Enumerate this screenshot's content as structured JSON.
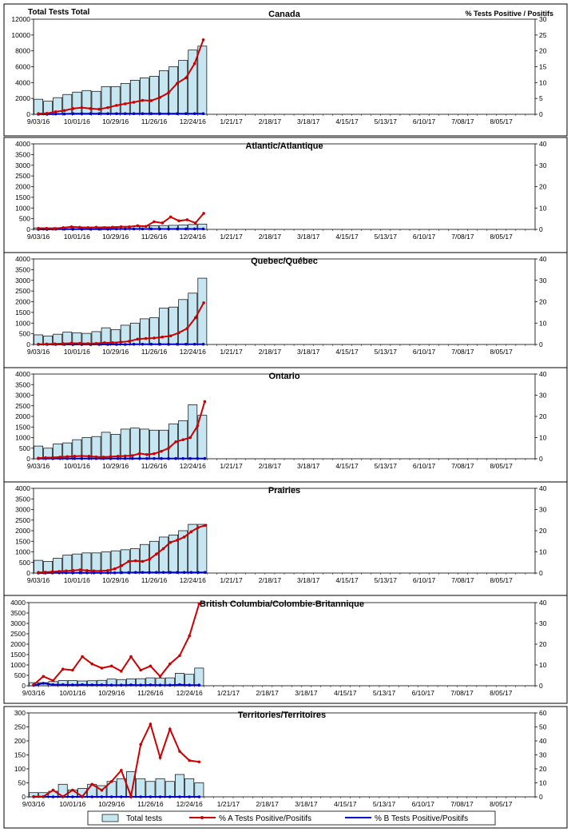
{
  "header": {
    "left_axis_title": "Total Tests Total",
    "right_axis_title": "% Tests Positive / Positifs"
  },
  "colors": {
    "bar_fill": "#c6e6f2",
    "bar_stroke": "#000000",
    "line_a": "#cc0000",
    "line_b": "#0000cc"
  },
  "x_tick_labels": [
    "9/03/16",
    "10/01/16",
    "10/29/16",
    "11/26/16",
    "12/24/16",
    "1/21/17",
    "2/18/17",
    "3/18/17",
    "4/15/17",
    "5/13/17",
    "6/10/17",
    "7/08/17",
    "8/05/17"
  ],
  "legend": {
    "total_tests": "Total tests",
    "pct_a": "% A Tests Positive/Positifs",
    "pct_b": "% B Tests Positive/Positifs"
  },
  "chart_data": [
    {
      "type": "bar",
      "title": "Canada",
      "weeks": 52,
      "ylim": [
        0,
        12000
      ],
      "yticks": [
        0,
        2000,
        4000,
        6000,
        8000,
        10000,
        12000
      ],
      "y2lim": [
        0,
        30
      ],
      "y2ticks": [
        0,
        5,
        10,
        15,
        20,
        25,
        30
      ],
      "total_tests": [
        1900,
        1650,
        2100,
        2500,
        2800,
        3000,
        2900,
        3500,
        3500,
        3900,
        4300,
        4600,
        4800,
        5500,
        6000,
        6800,
        8100,
        8600
      ],
      "pct_a": [
        0.2,
        0.3,
        0.8,
        1.2,
        1.8,
        2.1,
        1.8,
        1.6,
        2.1,
        2.8,
        3.3,
        3.8,
        4.4,
        4.3,
        5.3,
        6.8,
        9.8,
        11.5,
        16.0,
        23.5
      ],
      "pct_b": [
        0,
        0,
        0.1,
        0.1,
        0.2,
        0.2,
        0.2,
        0.2,
        0.2,
        0.2,
        0.2,
        0.2,
        0.2,
        0.2,
        0.2,
        0.2,
        0.2,
        0.2,
        0.2,
        0.2
      ]
    },
    {
      "type": "bar",
      "title": "Atlantic/Atlantique",
      "weeks": 52,
      "ylim": [
        0,
        4000
      ],
      "yticks": [
        0,
        500,
        1000,
        1500,
        2000,
        2500,
        3000,
        3500,
        4000
      ],
      "y2lim": [
        0,
        40
      ],
      "y2ticks": [
        0,
        10,
        20,
        30,
        40
      ],
      "total_tests": [
        70,
        70,
        80,
        90,
        100,
        110,
        110,
        120,
        130,
        140,
        150,
        160,
        170,
        180,
        190,
        200,
        230,
        250
      ],
      "pct_a": [
        0.5,
        0.5,
        0.4,
        0.8,
        1.2,
        1.0,
        0.8,
        1.0,
        0.8,
        1.0,
        1.2,
        1.2,
        1.7,
        1.4,
        3.6,
        3.0,
        5.8,
        4.0,
        4.5,
        3.0,
        7.5
      ],
      "pct_b": [
        0,
        0,
        0.1,
        0.1,
        0.1,
        0.1,
        0.1,
        0.1,
        0.1,
        0.2,
        0.2,
        0.2,
        0.2,
        0.2,
        0.2,
        0.2,
        0.2,
        0.2,
        0.2,
        0.2
      ]
    },
    {
      "type": "bar",
      "title": "Quebec/Québec",
      "weeks": 52,
      "ylim": [
        0,
        4000
      ],
      "yticks": [
        0,
        500,
        1000,
        1500,
        2000,
        2500,
        3000,
        3500,
        4000
      ],
      "y2lim": [
        0,
        40
      ],
      "y2ticks": [
        0,
        10,
        20,
        30,
        40
      ],
      "total_tests": [
        450,
        400,
        480,
        580,
        550,
        520,
        600,
        780,
        700,
        900,
        1000,
        1200,
        1250,
        1700,
        1750,
        2100,
        2400,
        3100
      ],
      "pct_a": [
        0.1,
        0.2,
        0.3,
        0.4,
        0.6,
        0.5,
        0.4,
        0.5,
        0.8,
        0.8,
        1.1,
        1.5,
        2.5,
        2.8,
        3.0,
        3.5,
        4.0,
        5.5,
        7.5,
        12.5,
        19.5
      ],
      "pct_b": [
        0,
        0,
        0,
        0,
        0,
        0,
        0,
        0,
        0,
        0,
        0,
        0.1,
        0.1,
        0.1,
        0.1,
        0.1,
        0.1,
        0.1,
        0.1,
        0.1
      ]
    },
    {
      "type": "bar",
      "title": "Ontario",
      "weeks": 52,
      "ylim": [
        0,
        4000
      ],
      "yticks": [
        0,
        500,
        1000,
        1500,
        2000,
        2500,
        3000,
        3500,
        4000
      ],
      "y2lim": [
        0,
        40
      ],
      "y2ticks": [
        0,
        10,
        20,
        30,
        40
      ],
      "total_tests": [
        600,
        500,
        700,
        750,
        900,
        1000,
        1050,
        1250,
        1150,
        1400,
        1450,
        1400,
        1350,
        1350,
        1650,
        1800,
        2550,
        2050
      ],
      "pct_a": [
        0.3,
        0.5,
        0.6,
        0.8,
        1.0,
        1.2,
        1.3,
        1.2,
        0.9,
        0.8,
        1.0,
        1.2,
        1.3,
        1.5,
        2.5,
        2.0,
        2.4,
        3.5,
        5.0,
        8.0,
        9.0,
        10.0,
        15.5,
        27.0
      ],
      "pct_b": [
        0.1,
        0.1,
        0.1,
        0.1,
        0.1,
        0.1,
        0.1,
        0.1,
        0.1,
        0.1,
        0.1,
        0.1,
        0.1,
        0.1,
        0.1,
        0.1,
        0.1,
        0.1,
        0.1,
        0.1,
        0.1,
        0.1,
        0.1,
        0.1
      ]
    },
    {
      "type": "bar",
      "title": "Prairies",
      "weeks": 52,
      "ylim": [
        0,
        4000
      ],
      "yticks": [
        0,
        500,
        1000,
        1500,
        2000,
        2500,
        3000,
        3500,
        4000
      ],
      "y2lim": [
        0,
        40
      ],
      "y2ticks": [
        0,
        10,
        20,
        30,
        40
      ],
      "total_tests": [
        600,
        550,
        700,
        850,
        900,
        950,
        950,
        1000,
        1050,
        1100,
        1150,
        1350,
        1500,
        1700,
        1800,
        2000,
        2300,
        2300
      ],
      "pct_a": [
        0.3,
        0.4,
        0.6,
        0.8,
        1.0,
        1.2,
        1.5,
        1.2,
        1.0,
        1.0,
        1.2,
        2.0,
        3.5,
        5.5,
        5.8,
        5.5,
        6.5,
        9.0,
        11.5,
        14.5,
        15.5,
        17.0,
        19.5,
        21.5,
        22.5
      ],
      "pct_b": [
        0,
        0,
        0.1,
        0.1,
        0.1,
        0.1,
        0.1,
        0.1,
        0.1,
        0.1,
        0.1,
        0.1,
        0.2,
        0.2,
        0.3,
        0.3,
        0.3,
        0.3,
        0.3,
        0.3,
        0.3,
        0.3,
        0.3,
        0.3,
        0.3
      ]
    },
    {
      "type": "bar",
      "title": "British Columbia/Colombie-Britannique",
      "weeks": 52,
      "ylim": [
        0,
        4000
      ],
      "yticks": [
        0,
        500,
        1000,
        1500,
        2000,
        2500,
        3000,
        3500,
        4000
      ],
      "y2lim": [
        0,
        40
      ],
      "y2ticks": [
        0,
        10,
        20,
        30,
        40
      ],
      "total_tests": [
        150,
        150,
        200,
        250,
        250,
        230,
        240,
        260,
        320,
        300,
        330,
        340,
        380,
        360,
        380,
        600,
        550,
        850
      ],
      "pct_a": [
        0.5,
        4.5,
        2.5,
        8.0,
        7.5,
        14.0,
        10.5,
        8.5,
        9.5,
        7.0,
        14.0,
        7.5,
        9.5,
        4.5,
        10.5,
        14.5,
        24.0,
        39.5
      ],
      "pct_b": [
        0.2,
        1.2,
        0.5,
        0.5,
        0.4,
        0.5,
        0.4,
        0.4,
        0.3,
        0.3,
        0.4,
        0.3,
        0.4,
        0.3,
        0.3,
        0.5,
        0.3,
        0.3
      ]
    },
    {
      "type": "bar",
      "title": "Territories/Territoires",
      "weeks": 52,
      "ylim": [
        0,
        300
      ],
      "yticks": [
        0,
        50,
        100,
        150,
        200,
        250,
        300
      ],
      "y2lim": [
        0,
        60
      ],
      "y2ticks": [
        0,
        10,
        20,
        30,
        40,
        50,
        60
      ],
      "total_tests": [
        15,
        15,
        20,
        45,
        25,
        30,
        45,
        40,
        55,
        65,
        90,
        65,
        55,
        65,
        55,
        80,
        65,
        50
      ],
      "pct_a": [
        0.2,
        0.2,
        4.8,
        0.2,
        4.8,
        0.2,
        9.0,
        4.7,
        11.0,
        19.0,
        0.5,
        37.5,
        52.0,
        28.0,
        48.5,
        32.5,
        26.0,
        25.0
      ],
      "pct_b": [
        0,
        0,
        0,
        0,
        0,
        0,
        0,
        0,
        0,
        0,
        0,
        0,
        0,
        0,
        0,
        0,
        0,
        0
      ]
    }
  ]
}
